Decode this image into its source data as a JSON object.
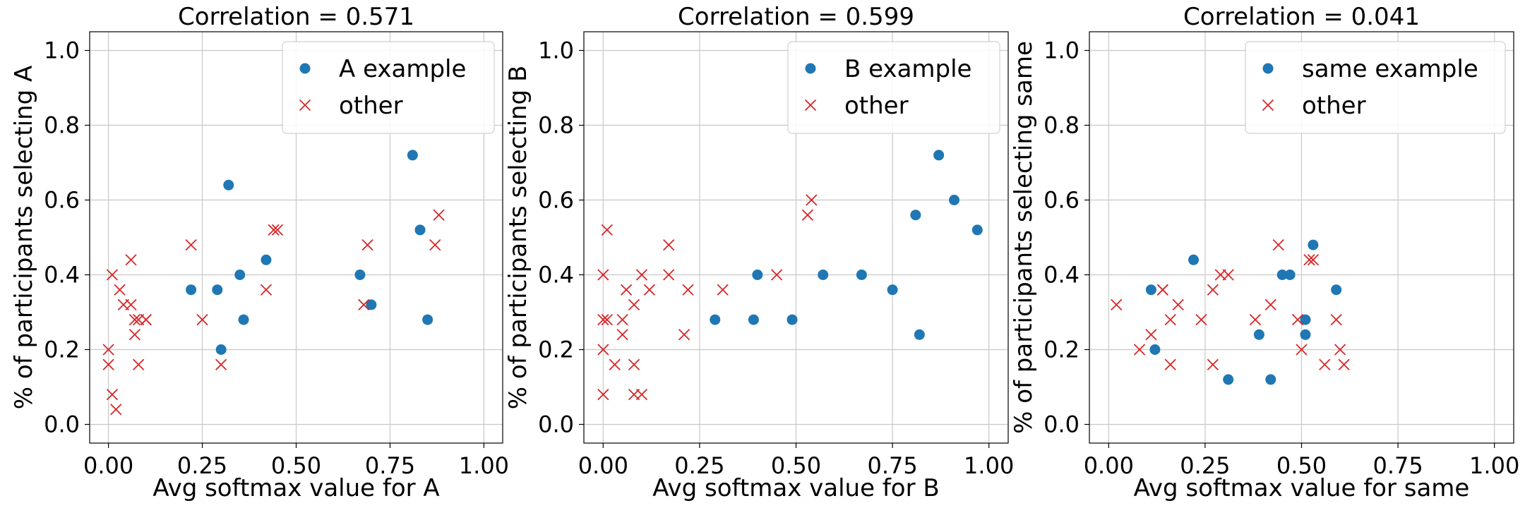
{
  "colors": {
    "example": "#1f77b4",
    "other": "#d62728",
    "grid": "#c8c8c8",
    "spine": "#000000"
  },
  "chart_data": [
    {
      "type": "scatter",
      "title": "Correlation = 0.571",
      "xlabel": "Avg softmax value for A",
      "ylabel": "% of participants selecting A",
      "xlim": [
        -0.05,
        1.05
      ],
      "ylim": [
        -0.05,
        1.05
      ],
      "xticks": [
        "0.00",
        "0.25",
        "0.50",
        "0.75",
        "1.00"
      ],
      "yticks": [
        "0.0",
        "0.2",
        "0.4",
        "0.6",
        "0.8",
        "1.0"
      ],
      "grid": true,
      "legend_position": "top-right",
      "series": [
        {
          "name": "A example",
          "marker": "circle",
          "points": [
            [
              0.22,
              0.36
            ],
            [
              0.29,
              0.36
            ],
            [
              0.3,
              0.2
            ],
            [
              0.32,
              0.64
            ],
            [
              0.35,
              0.4
            ],
            [
              0.36,
              0.28
            ],
            [
              0.42,
              0.44
            ],
            [
              0.67,
              0.4
            ],
            [
              0.7,
              0.32
            ],
            [
              0.81,
              0.72
            ],
            [
              0.83,
              0.52
            ],
            [
              0.85,
              0.28
            ]
          ]
        },
        {
          "name": "other",
          "marker": "x",
          "points": [
            [
              0.0,
              0.2
            ],
            [
              0.0,
              0.16
            ],
            [
              0.01,
              0.4
            ],
            [
              0.01,
              0.08
            ],
            [
              0.02,
              0.04
            ],
            [
              0.03,
              0.36
            ],
            [
              0.04,
              0.32
            ],
            [
              0.06,
              0.44
            ],
            [
              0.06,
              0.32
            ],
            [
              0.07,
              0.28
            ],
            [
              0.07,
              0.24
            ],
            [
              0.08,
              0.28
            ],
            [
              0.08,
              0.16
            ],
            [
              0.1,
              0.28
            ],
            [
              0.1,
              0.28
            ],
            [
              0.22,
              0.48
            ],
            [
              0.25,
              0.28
            ],
            [
              0.3,
              0.16
            ],
            [
              0.42,
              0.36
            ],
            [
              0.44,
              0.52
            ],
            [
              0.45,
              0.52
            ],
            [
              0.68,
              0.32
            ],
            [
              0.69,
              0.48
            ],
            [
              0.87,
              0.48
            ],
            [
              0.88,
              0.56
            ]
          ]
        }
      ]
    },
    {
      "type": "scatter",
      "title": "Correlation = 0.599",
      "xlabel": "Avg softmax value for B",
      "ylabel": "% of participants selecting B",
      "xlim": [
        -0.05,
        1.05
      ],
      "ylim": [
        -0.05,
        1.05
      ],
      "xticks": [
        "0.00",
        "0.25",
        "0.50",
        "0.75",
        "1.00"
      ],
      "yticks": [
        "0.0",
        "0.2",
        "0.4",
        "0.6",
        "0.8",
        "1.0"
      ],
      "grid": true,
      "legend_position": "top-right",
      "series": [
        {
          "name": "B example",
          "marker": "circle",
          "points": [
            [
              0.29,
              0.28
            ],
            [
              0.39,
              0.28
            ],
            [
              0.4,
              0.4
            ],
            [
              0.49,
              0.28
            ],
            [
              0.57,
              0.4
            ],
            [
              0.67,
              0.4
            ],
            [
              0.75,
              0.36
            ],
            [
              0.81,
              0.56
            ],
            [
              0.82,
              0.24
            ],
            [
              0.87,
              0.72
            ],
            [
              0.91,
              0.6
            ],
            [
              0.97,
              0.52
            ]
          ]
        },
        {
          "name": "other",
          "marker": "x",
          "points": [
            [
              0.0,
              0.08
            ],
            [
              0.0,
              0.2
            ],
            [
              0.0,
              0.28
            ],
            [
              0.0,
              0.4
            ],
            [
              0.01,
              0.52
            ],
            [
              0.01,
              0.28
            ],
            [
              0.03,
              0.16
            ],
            [
              0.05,
              0.28
            ],
            [
              0.05,
              0.24
            ],
            [
              0.06,
              0.36
            ],
            [
              0.08,
              0.32
            ],
            [
              0.08,
              0.16
            ],
            [
              0.08,
              0.08
            ],
            [
              0.1,
              0.4
            ],
            [
              0.1,
              0.08
            ],
            [
              0.12,
              0.36
            ],
            [
              0.17,
              0.48
            ],
            [
              0.17,
              0.4
            ],
            [
              0.21,
              0.24
            ],
            [
              0.22,
              0.36
            ],
            [
              0.31,
              0.36
            ],
            [
              0.45,
              0.4
            ],
            [
              0.53,
              0.56
            ],
            [
              0.54,
              0.6
            ]
          ]
        }
      ]
    },
    {
      "type": "scatter",
      "title": "Correlation = 0.041",
      "xlabel": "Avg softmax value for same",
      "ylabel": "% of participants selecting same",
      "xlim": [
        -0.05,
        1.05
      ],
      "ylim": [
        -0.05,
        1.05
      ],
      "xticks": [
        "0.00",
        "0.25",
        "0.50",
        "0.75",
        "1.00"
      ],
      "yticks": [
        "0.0",
        "0.2",
        "0.4",
        "0.6",
        "0.8",
        "1.0"
      ],
      "grid": true,
      "legend_position": "top-right",
      "series": [
        {
          "name": "same example",
          "marker": "circle",
          "points": [
            [
              0.11,
              0.36
            ],
            [
              0.12,
              0.2
            ],
            [
              0.22,
              0.44
            ],
            [
              0.31,
              0.12
            ],
            [
              0.39,
              0.24
            ],
            [
              0.42,
              0.12
            ],
            [
              0.45,
              0.4
            ],
            [
              0.47,
              0.4
            ],
            [
              0.51,
              0.28
            ],
            [
              0.51,
              0.24
            ],
            [
              0.53,
              0.48
            ],
            [
              0.59,
              0.36
            ]
          ]
        },
        {
          "name": "other",
          "marker": "x",
          "points": [
            [
              0.02,
              0.32
            ],
            [
              0.08,
              0.2
            ],
            [
              0.11,
              0.24
            ],
            [
              0.14,
              0.36
            ],
            [
              0.14,
              0.36
            ],
            [
              0.16,
              0.28
            ],
            [
              0.16,
              0.16
            ],
            [
              0.18,
              0.32
            ],
            [
              0.24,
              0.28
            ],
            [
              0.27,
              0.36
            ],
            [
              0.27,
              0.16
            ],
            [
              0.29,
              0.4
            ],
            [
              0.31,
              0.4
            ],
            [
              0.38,
              0.28
            ],
            [
              0.42,
              0.32
            ],
            [
              0.44,
              0.48
            ],
            [
              0.49,
              0.28
            ],
            [
              0.5,
              0.2
            ],
            [
              0.52,
              0.44
            ],
            [
              0.53,
              0.44
            ],
            [
              0.56,
              0.16
            ],
            [
              0.59,
              0.28
            ],
            [
              0.6,
              0.2
            ],
            [
              0.61,
              0.16
            ]
          ]
        }
      ]
    }
  ]
}
